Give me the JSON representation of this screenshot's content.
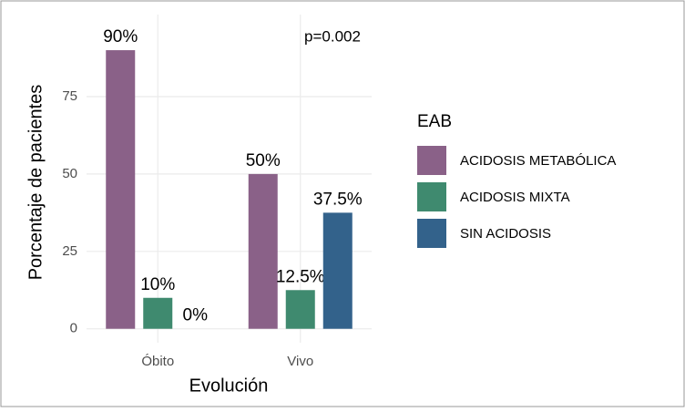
{
  "chart_data": {
    "type": "bar",
    "x_label": "Evolución",
    "y_label": "Porcentaje de pacientes",
    "annotation": "p=0.002",
    "categories": [
      "Óbito",
      "Vivo"
    ],
    "legend_title": "EAB",
    "series": [
      {
        "name": "ACIDOSIS METABÓLICA",
        "color": "#8a6188",
        "values": [
          90,
          50
        ],
        "value_labels": [
          "90%",
          "50%"
        ]
      },
      {
        "name": "ACIDOSIS MIXTA",
        "color": "#3f8a6f",
        "values": [
          10,
          12.5
        ],
        "value_labels": [
          "10%",
          "12.5%"
        ]
      },
      {
        "name": "SIN ACIDOSIS",
        "color": "#33628b",
        "values": [
          0,
          37.5
        ],
        "value_labels": [
          "0%",
          "37.5%"
        ]
      }
    ],
    "ylim": [
      -4.5,
      101.5
    ],
    "yticks": [
      0,
      25,
      50,
      75
    ],
    "grid": true,
    "legend": "right"
  }
}
